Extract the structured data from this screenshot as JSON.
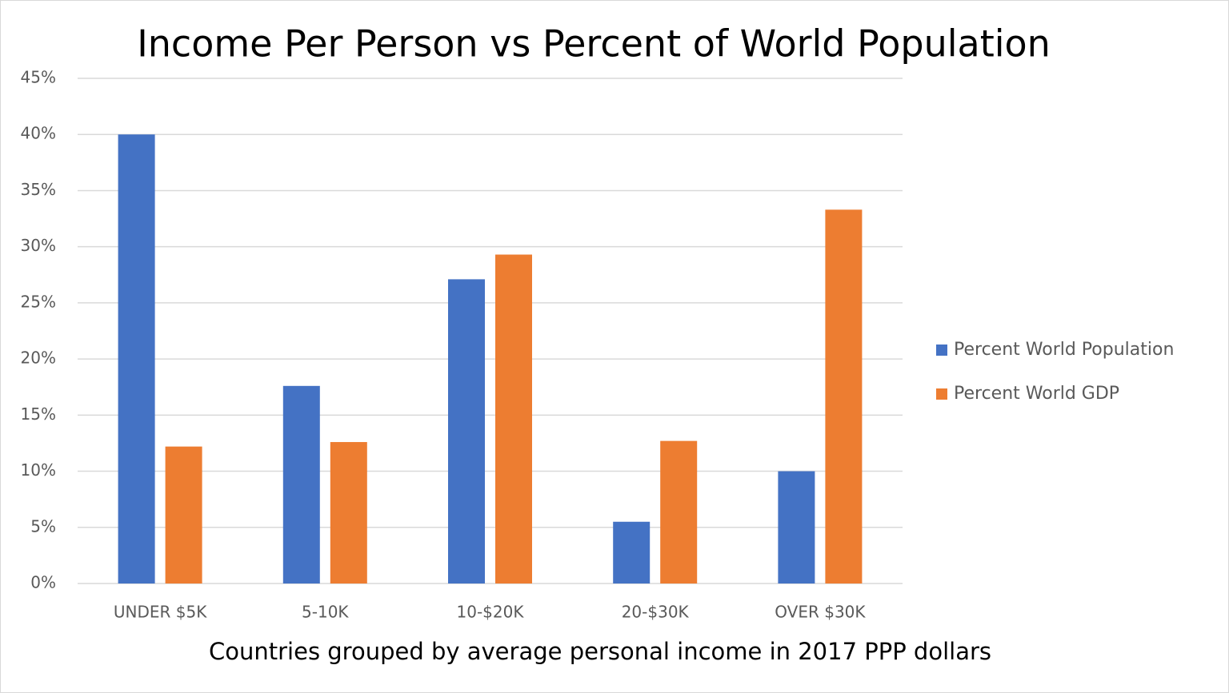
{
  "chart_data": {
    "type": "bar",
    "title": "Income Per Person vs Percent of World Population",
    "x_label": "Countries grouped by average personal income in 2017 PPP dollars",
    "categories": [
      "UNDER $5K",
      "5-10K",
      "10-$20K",
      "20-$30K",
      "OVER $30K"
    ],
    "series": [
      {
        "name": "Percent World Population",
        "color": "#4472c4",
        "values": [
          40,
          17.6,
          27.1,
          5.5,
          10
        ]
      },
      {
        "name": "Percent World GDP",
        "color": "#ed7d31",
        "values": [
          12.2,
          12.6,
          29.3,
          12.7,
          33.3
        ]
      }
    ],
    "ylim": [
      0,
      45
    ],
    "yticks": [
      {
        "value": 0,
        "label": "0%"
      },
      {
        "value": 5,
        "label": "5%"
      },
      {
        "value": 10,
        "label": "10%"
      },
      {
        "value": 15,
        "label": "15%"
      },
      {
        "value": 20,
        "label": "20%"
      },
      {
        "value": 25,
        "label": "25%"
      },
      {
        "value": 30,
        "label": "30%"
      },
      {
        "value": 35,
        "label": "35%"
      },
      {
        "value": 40,
        "label": "40%"
      },
      {
        "value": 45,
        "label": "45%"
      }
    ],
    "grid": true,
    "legend": "right"
  }
}
